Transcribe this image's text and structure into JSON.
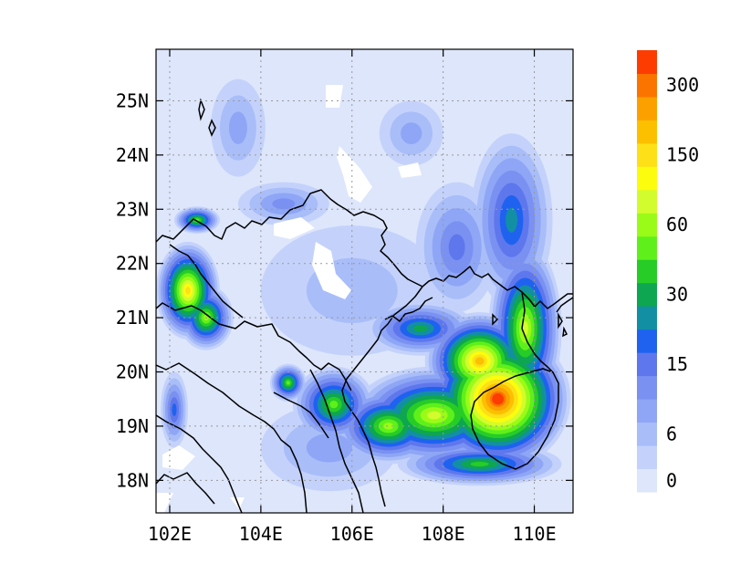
{
  "map": {
    "lon_range": [
      101.7,
      110.85
    ],
    "lat_range": [
      17.4,
      25.95
    ],
    "grid": true,
    "x_ticks": [
      {
        "value": 102,
        "label": "102E"
      },
      {
        "value": 104,
        "label": "104E"
      },
      {
        "value": 106,
        "label": "106E"
      },
      {
        "value": 108,
        "label": "108E"
      },
      {
        "value": 110,
        "label": "110E"
      }
    ],
    "y_ticks": [
      {
        "value": 25,
        "label": "25N"
      },
      {
        "value": 24,
        "label": "24N"
      },
      {
        "value": 23,
        "label": "23N"
      },
      {
        "value": 22,
        "label": "22N"
      },
      {
        "value": 21,
        "label": "21N"
      },
      {
        "value": 20,
        "label": "20N"
      },
      {
        "value": 19,
        "label": "19N"
      },
      {
        "value": 18,
        "label": "18N"
      }
    ]
  },
  "colorbar": {
    "position": "right",
    "colors": [
      "#dde6fb",
      "#c4d2fb",
      "#a9bdf9",
      "#8ea6f5",
      "#7a91f2",
      "#5f77ec",
      "#1f62f0",
      "#138fa3",
      "#0ea650",
      "#27cc27",
      "#5ff01b",
      "#9afa18",
      "#d2fc2d",
      "#fcfc0e",
      "#fde017",
      "#fcc000",
      "#fca000",
      "#fc7400",
      "#fc3c00"
    ],
    "labels": [
      {
        "level_index": 0,
        "text": "0"
      },
      {
        "level_index": 2,
        "text": "6"
      },
      {
        "level_index": 5,
        "text": "15"
      },
      {
        "level_index": 8,
        "text": "30"
      },
      {
        "level_index": 11,
        "text": "60"
      },
      {
        "level_index": 14,
        "text": "150"
      },
      {
        "level_index": 17,
        "text": "300"
      }
    ]
  },
  "field": {
    "description": "precipitation-like contour field: level index per blob",
    "blobs": [
      {
        "lon": 109.2,
        "lat": 19.5,
        "rx": 1.6,
        "ry": 1.3,
        "peak": 18
      },
      {
        "lon": 108.8,
        "lat": 20.2,
        "rx": 1.2,
        "ry": 0.9,
        "peak": 15
      },
      {
        "lon": 107.8,
        "lat": 19.2,
        "rx": 1.8,
        "ry": 0.9,
        "peak": 12
      },
      {
        "lon": 109.8,
        "lat": 20.8,
        "rx": 0.8,
        "ry": 1.6,
        "peak": 12
      },
      {
        "lon": 106.8,
        "lat": 19.0,
        "rx": 1.2,
        "ry": 0.7,
        "peak": 11
      },
      {
        "lon": 105.6,
        "lat": 19.4,
        "rx": 0.9,
        "ry": 0.7,
        "peak": 10
      },
      {
        "lon": 102.4,
        "lat": 21.5,
        "rx": 0.7,
        "ry": 0.9,
        "peak": 14
      },
      {
        "lon": 102.8,
        "lat": 21.0,
        "rx": 0.6,
        "ry": 0.6,
        "peak": 11
      },
      {
        "lon": 102.6,
        "lat": 22.8,
        "rx": 0.5,
        "ry": 0.25,
        "peak": 10
      },
      {
        "lon": 104.6,
        "lat": 19.8,
        "rx": 0.4,
        "ry": 0.35,
        "peak": 10
      },
      {
        "lon": 107.5,
        "lat": 20.8,
        "rx": 1.2,
        "ry": 0.5,
        "peak": 8
      },
      {
        "lon": 108.8,
        "lat": 18.3,
        "rx": 1.8,
        "ry": 0.4,
        "peak": 9
      },
      {
        "lon": 109.5,
        "lat": 22.8,
        "rx": 0.9,
        "ry": 1.6,
        "peak": 7
      },
      {
        "lon": 108.3,
        "lat": 22.3,
        "rx": 0.9,
        "ry": 1.2,
        "peak": 5
      },
      {
        "lon": 102.1,
        "lat": 19.3,
        "rx": 0.3,
        "ry": 0.7,
        "peak": 6
      },
      {
        "lon": 104.5,
        "lat": 23.1,
        "rx": 1.0,
        "ry": 0.4,
        "peak": 4
      },
      {
        "lon": 103.5,
        "lat": 24.5,
        "rx": 0.6,
        "ry": 0.9,
        "peak": 3
      },
      {
        "lon": 107.3,
        "lat": 24.4,
        "rx": 0.7,
        "ry": 0.6,
        "peak": 3
      },
      {
        "lon": 106.0,
        "lat": 21.5,
        "rx": 2.0,
        "ry": 1.2,
        "peak": 2
      },
      {
        "lon": 105.5,
        "lat": 18.6,
        "rx": 1.5,
        "ry": 0.8,
        "peak": 3
      }
    ]
  }
}
